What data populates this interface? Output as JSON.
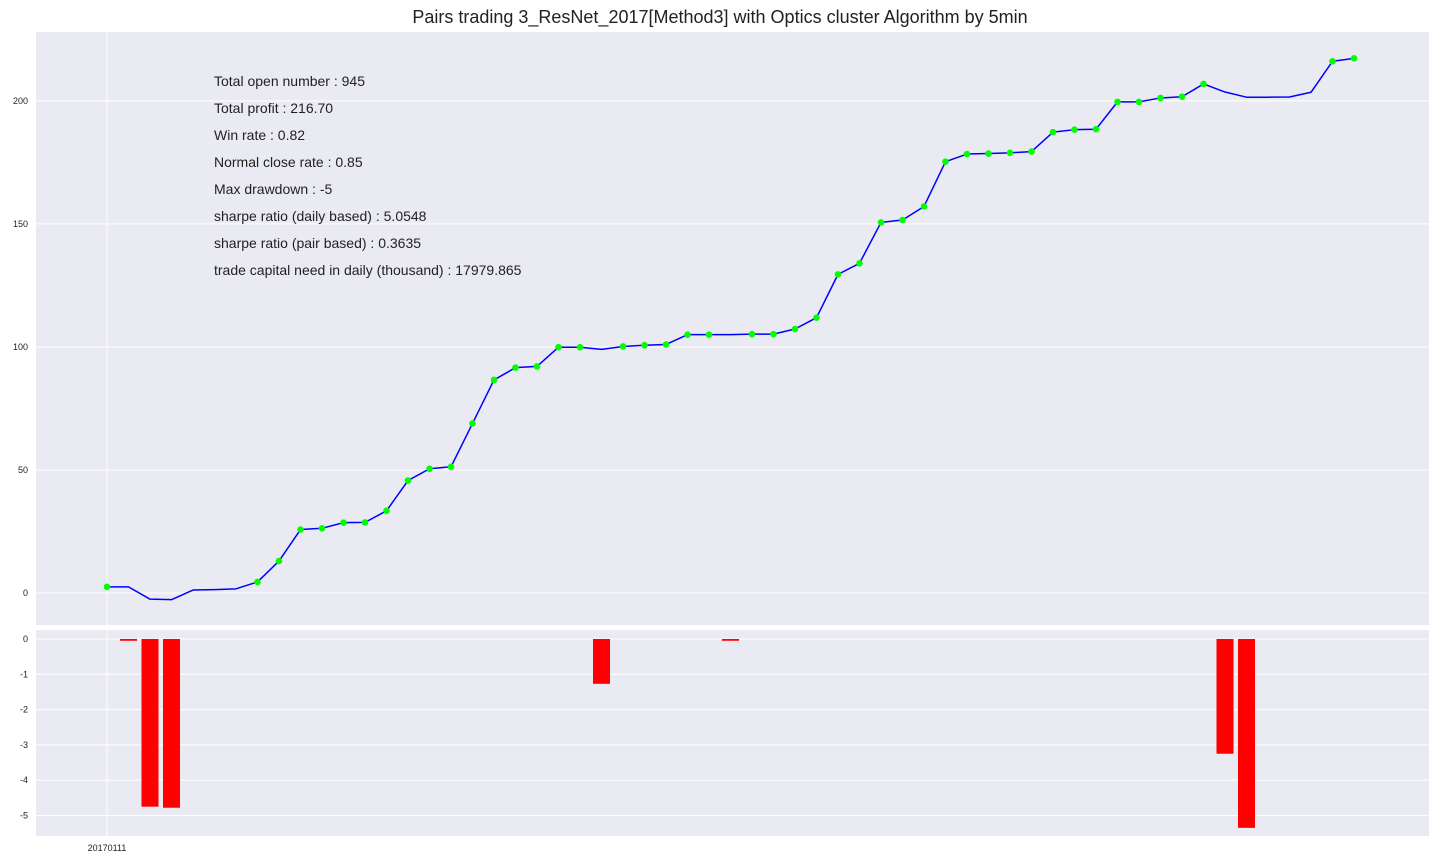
{
  "chart_data": [
    {
      "type": "line",
      "title": "Pairs trading 3_ResNet_2017[Method3] with Optics cluster Algorithm by 5min",
      "xlabel": "",
      "ylabel": "",
      "ylim": [
        -13,
        228
      ],
      "yticks": [
        0,
        50,
        100,
        150,
        200
      ],
      "grid": true,
      "series": [
        {
          "color": "#0000ff",
          "values": [
            2.5,
            2.5,
            -2.5,
            -2.7,
            1.2,
            1.4,
            1.7,
            4.5,
            13,
            25.8,
            26.3,
            28.6,
            28.7,
            33.4,
            45.7,
            50.5,
            51.3,
            68.9,
            86.6,
            91.6,
            92.1,
            99.9,
            99.9,
            99,
            100.2,
            100.7,
            101,
            105,
            105,
            105,
            105.2,
            105.2,
            107.3,
            111.9,
            129.5,
            134,
            150.6,
            151.6,
            157.1,
            175.3,
            178.4,
            178.6,
            178.9,
            179.4,
            187.3,
            188.3,
            188.5,
            199.6,
            199.6,
            201.2,
            201.7,
            206.9,
            203.6,
            201.5,
            201.5,
            201.6,
            203.5,
            216.1,
            217.3
          ]
        }
      ],
      "markers": {
        "color": "#00ff00",
        "indices": [
          0,
          7,
          8,
          9,
          10,
          11,
          12,
          13,
          14,
          15,
          16,
          17,
          18,
          19,
          20,
          21,
          22,
          24,
          25,
          26,
          27,
          28,
          30,
          31,
          32,
          33,
          34,
          35,
          36,
          37,
          38,
          39,
          40,
          41,
          42,
          43,
          44,
          45,
          46,
          47,
          48,
          49,
          50,
          51,
          57,
          58
        ]
      },
      "annotations": [
        "Total open number : 945",
        "Total profit : 216.70",
        "Win rate : 0.82",
        "Normal close rate : 0.85",
        "Max drawdown : -5",
        "sharpe ratio (daily based) : 5.0548",
        "sharpe ratio (pair based) : 0.3635",
        "trade capital need in daily (thousand) : 17979.865"
      ]
    },
    {
      "type": "bar",
      "title": "",
      "ylim": [
        -5.55,
        0
      ],
      "yticks": [
        0,
        -1,
        -2,
        -3,
        -4,
        -5
      ],
      "grid": true,
      "color": "#ff0000",
      "categories": [
        "20170111"
      ],
      "bars": [
        {
          "index": 1,
          "value": -0.05
        },
        {
          "index": 2,
          "value": -4.75
        },
        {
          "index": 3,
          "value": -4.78
        },
        {
          "index": 23,
          "value": -1.27
        },
        {
          "index": 29,
          "value": -0.05
        },
        {
          "index": 52,
          "value": -3.25
        },
        {
          "index": 53,
          "value": -5.35
        }
      ]
    }
  ]
}
